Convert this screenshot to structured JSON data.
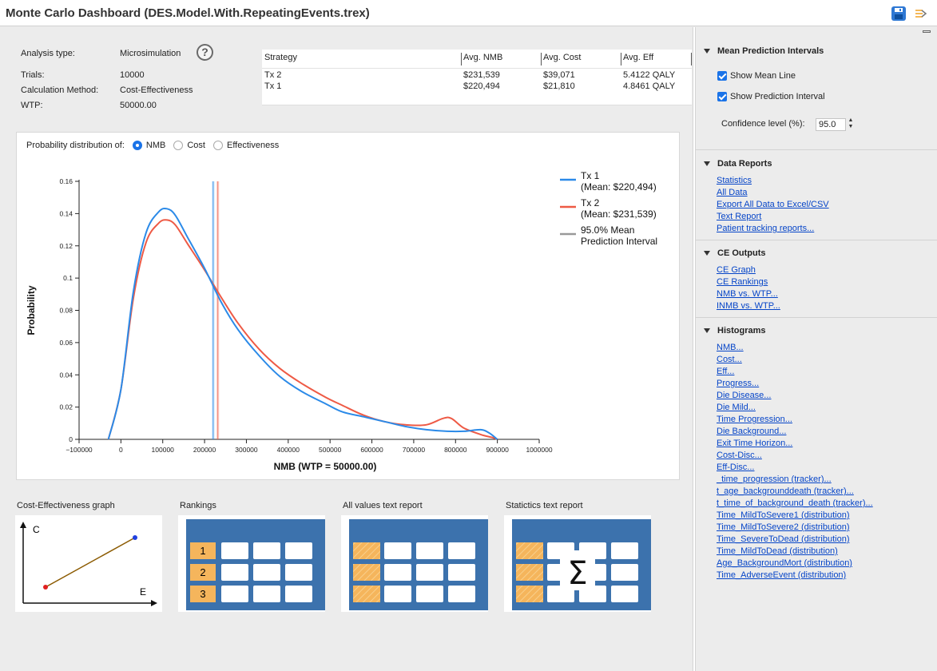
{
  "window": {
    "title": "Monte Carlo Dashboard (DES.Model.With.RepeatingEvents.trex)"
  },
  "toolbar": {
    "save_icon": "save-icon",
    "options_icon": "panel-options-icon"
  },
  "info": {
    "analysis_type_label": "Analysis type:",
    "analysis_type_value": "Microsimulation",
    "trials_label": "Trials:",
    "trials_value": "10000",
    "method_label": "Calculation Method:",
    "method_value": "Cost-Effectiveness",
    "wtp_label": "WTP:",
    "wtp_value": "50000.00",
    "help_glyph": "?"
  },
  "strategy_table": {
    "headers": [
      "Strategy",
      "Avg. NMB",
      "Avg. Cost",
      "Avg. Eff"
    ],
    "rows": [
      [
        "Tx 2",
        "$231,539",
        "$39,071",
        "5.4122 QALY"
      ],
      [
        "Tx 1",
        "$220,494",
        "$21,810",
        "4.8461 QALY"
      ]
    ]
  },
  "distribution": {
    "label": "Probability distribution of:",
    "options": [
      "NMB",
      "Cost",
      "Effectiveness"
    ],
    "selected": "NMB"
  },
  "chart_data": {
    "type": "line",
    "xlabel": "NMB (WTP = 50000.00)",
    "ylabel": "Probability",
    "xlim": [
      -100000,
      1000000
    ],
    "ylim": [
      0,
      0.16
    ],
    "xticks": [
      "−100000",
      "0",
      "100000",
      "200000",
      "300000",
      "400000",
      "500000",
      "600000",
      "700000",
      "800000",
      "900000",
      "1000000"
    ],
    "yticks": [
      "0",
      "0.02",
      "0.04",
      "0.06",
      "0.08",
      "0.1",
      "0.12",
      "0.14",
      "0.16"
    ],
    "series": [
      {
        "name": "Tx 1",
        "name2": "(Mean: $220,494)",
        "color": "#2b8ae8",
        "x": [
          -30000,
          0,
          30000,
          60000,
          90000,
          110000,
          130000,
          160000,
          200000,
          240000,
          280000,
          330000,
          380000,
          430000,
          490000,
          530000,
          580000,
          630000,
          680000,
          730000,
          780000,
          820000,
          860000,
          880000,
          900000
        ],
        "y": [
          0,
          0.031,
          0.092,
          0.128,
          0.141,
          0.143,
          0.139,
          0.125,
          0.106,
          0.085,
          0.068,
          0.052,
          0.039,
          0.03,
          0.022,
          0.017,
          0.014,
          0.011,
          0.008,
          0.006,
          0.005,
          0.005,
          0.006,
          0.004,
          0
        ]
      },
      {
        "name": "Tx 2",
        "name2": "(Mean: $231,539)",
        "color": "#ee5a45",
        "x": [
          -30000,
          0,
          30000,
          60000,
          90000,
          110000,
          130000,
          160000,
          200000,
          240000,
          280000,
          330000,
          380000,
          430000,
          490000,
          530000,
          580000,
          630000,
          680000,
          730000,
          770000,
          790000,
          820000,
          860000,
          890000,
          900000
        ],
        "y": [
          0,
          0.031,
          0.088,
          0.122,
          0.134,
          0.136,
          0.133,
          0.121,
          0.105,
          0.088,
          0.072,
          0.056,
          0.044,
          0.035,
          0.026,
          0.021,
          0.015,
          0.011,
          0.009,
          0.009,
          0.013,
          0.013,
          0.007,
          0.003,
          0.001,
          0
        ]
      }
    ],
    "intervals": [
      {
        "series": "Tx 1",
        "mean": 220494,
        "low": 217000,
        "high": 224000,
        "color": "#2b8ae8"
      },
      {
        "series": "Tx 2",
        "mean": 231539,
        "low": 228000,
        "high": 235000,
        "color": "#ee5a45"
      }
    ],
    "legend": {
      "placement": "top-right",
      "entries": [
        {
          "line1": "Tx 1",
          "line2": "(Mean: $220,494)",
          "color": "#2b8ae8"
        },
        {
          "line1": "Tx 2",
          "line2": "(Mean: $231,539)",
          "color": "#ee5a45"
        },
        {
          "line1": "95.0% Mean",
          "line2": "Prediction Interval",
          "color": "#999999"
        }
      ]
    },
    "grid": false
  },
  "thumbnails": [
    {
      "label": "Cost-Effectiveness graph",
      "axis_c": "C",
      "axis_e": "E"
    },
    {
      "label": "Rankings",
      "ranks": [
        "1",
        "2",
        "3"
      ]
    },
    {
      "label": "All values text report"
    },
    {
      "label": "Statictics text report",
      "symbol": "Σ"
    }
  ],
  "right_panel": {
    "mean_pred": {
      "title": "Mean Prediction Intervals",
      "show_mean_line": "Show Mean Line",
      "show_pred_interval": "Show Prediction Interval",
      "confidence_label": "Confidence level (%):",
      "confidence_value": "95.0"
    },
    "data_reports": {
      "title": "Data Reports",
      "links": [
        "Statistics",
        "All Data",
        "Export All Data to Excel/CSV",
        "Text Report",
        "Patient tracking reports..."
      ]
    },
    "ce_outputs": {
      "title": "CE Outputs",
      "links": [
        "CE Graph",
        "CE Rankings",
        "NMB vs. WTP...",
        "INMB vs. WTP..."
      ]
    },
    "histograms": {
      "title": "Histograms",
      "links": [
        "NMB...",
        "Cost...",
        "Eff...",
        "Progress...",
        "Die Disease...",
        "Die Mild...",
        "Time Progression...",
        "Die Background...",
        "Exit Time Horizon...",
        "Cost-Disc...",
        "Eff-Disc...",
        "_time_progression (tracker)...",
        "t_age_backgrounddeath (tracker)...",
        "t_time_of_background_death (tracker)...",
        "Time_MildToSevere1 (distribution)",
        "Time_MildToSevere2 (distribution)",
        "Time_SevereToDead (distribution)",
        "Time_MildToDead (distribution)",
        "Age_BackgroundMort (distribution)",
        "Time_AdverseEvent (distribution)"
      ]
    }
  },
  "colors": {
    "accent": "#1a73e8",
    "link": "#0645c8",
    "table_blue": "#3c72ad",
    "rank_orange": "#f5b55c",
    "tx1": "#2b8ae8",
    "tx2": "#ee5a45"
  }
}
